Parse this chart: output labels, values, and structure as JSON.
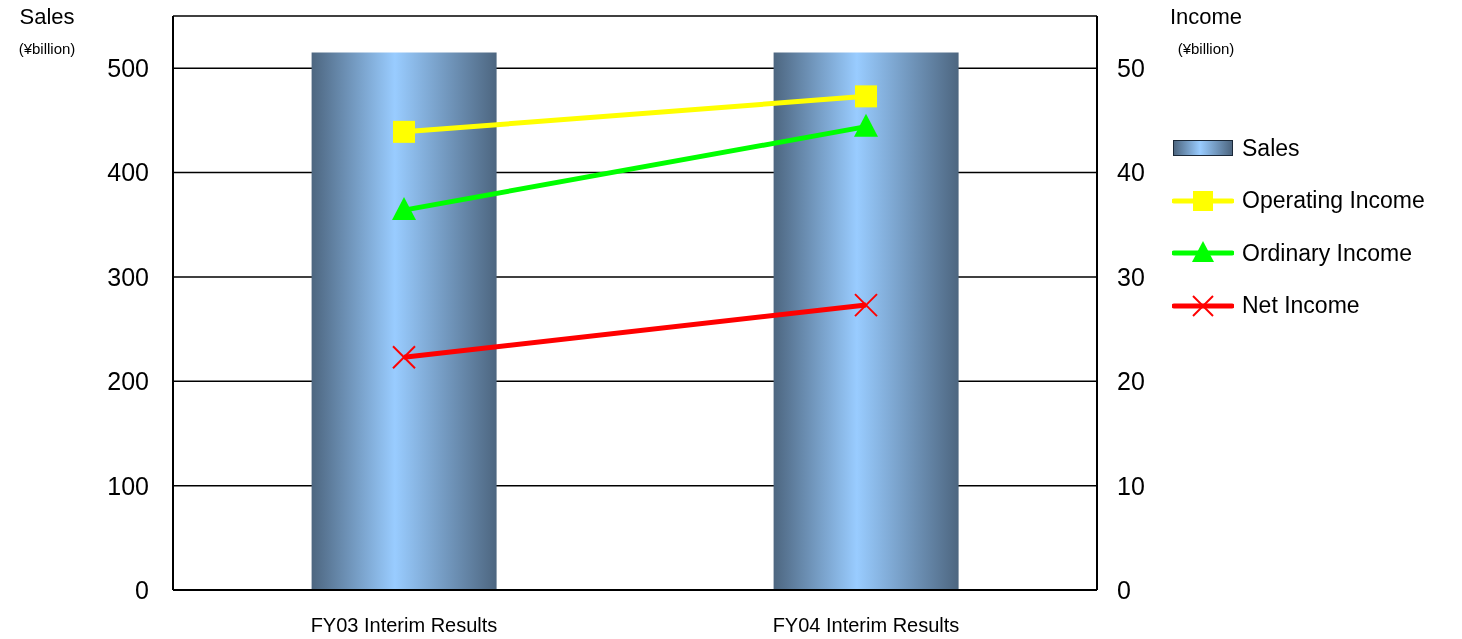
{
  "chart_data": {
    "type": "bar",
    "categories": [
      "FY03 Interim Results",
      "FY04 Interim Results"
    ],
    "ylabel": "Sales\n(¥billion)",
    "y2label": "Income\n(¥billion)",
    "series": [
      {
        "name": "Sales",
        "color": "#99ccff",
        "values": [
          515,
          515
        ]
      },
      {
        "name": "Operating Income",
        "type": "line",
        "axis": "y2",
        "color": "#ffff00",
        "marker": "square",
        "values": [
          43.9,
          47.3
        ]
      },
      {
        "name": "Ordinary Income",
        "type": "line",
        "axis": "y2",
        "color": "#00ff00",
        "marker": "triangle",
        "values": [
          36.4,
          44.4
        ]
      },
      {
        "name": "Net Income",
        "type": "line",
        "axis": "y2",
        "color": "#ff0000",
        "marker": "cross",
        "values": [
          22.3,
          27.3
        ]
      }
    ],
    "ylim": [
      0,
      550
    ],
    "yticks": [
      0,
      100,
      200,
      300,
      400,
      500
    ],
    "y2lim": [
      0,
      55
    ],
    "y2ticks": [
      0,
      10,
      20,
      30,
      40,
      50
    ],
    "grid": "y",
    "legend": "right"
  }
}
